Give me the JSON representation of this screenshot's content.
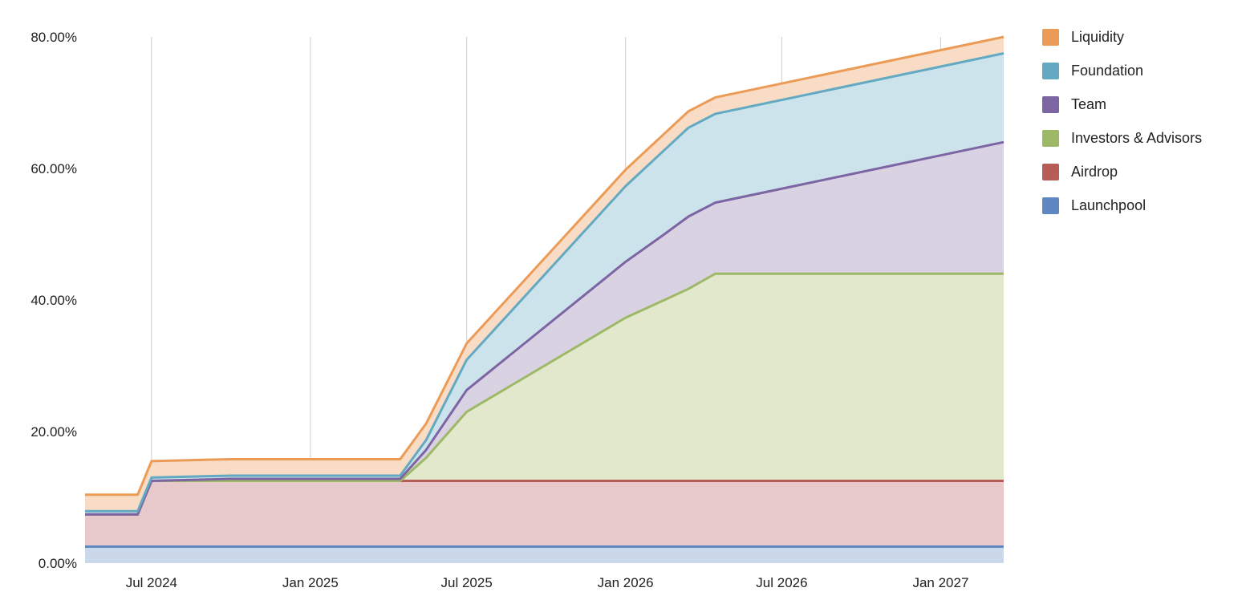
{
  "chart_data": {
    "type": "area",
    "stacked": true,
    "title": "",
    "xlabel": "",
    "ylabel": "",
    "ylim": [
      0,
      80
    ],
    "xlim": [
      "2024-04-15",
      "2027-03-15"
    ],
    "grid": "vertical",
    "legend_position": "right",
    "y_ticks": [
      "0.00%",
      "20.00%",
      "40.00%",
      "60.00%",
      "80.00%"
    ],
    "x_ticks": [
      {
        "date": "2024-07-01",
        "label": "Jul 2024"
      },
      {
        "date": "2025-01-01",
        "label": "Jan 2025"
      },
      {
        "date": "2025-07-01",
        "label": "Jul 2025"
      },
      {
        "date": "2026-01-01",
        "label": "Jan 2026"
      },
      {
        "date": "2026-07-01",
        "label": "Jul 2026"
      },
      {
        "date": "2027-01-01",
        "label": "Jan 2027"
      }
    ],
    "x": [
      "2024-04-15",
      "2024-06-15",
      "2024-07-01",
      "2024-10-01",
      "2025-04-15",
      "2025-05-15",
      "2025-07-01",
      "2026-01-01",
      "2026-02-15",
      "2026-03-15",
      "2026-04-15",
      "2027-03-15"
    ],
    "series": [
      {
        "name": "Launchpool",
        "color": "#5f87c1",
        "fill": "#cbd8ea",
        "values": [
          2.5,
          2.5,
          2.5,
          2.5,
          2.5,
          2.5,
          2.5,
          2.5,
          2.5,
          2.5,
          2.5,
          2.5
        ]
      },
      {
        "name": "Airdrop",
        "color": "#b85c57",
        "fill": "#e7c9cb",
        "values": [
          4.9,
          4.9,
          10.0,
          10.0,
          10.0,
          10.0,
          10.0,
          10.0,
          10.0,
          10.0,
          10.0,
          10.0
        ]
      },
      {
        "name": "Investors & Advisors",
        "color": "#9eb966",
        "fill": "#e1e8cb",
        "values": [
          0,
          0,
          0,
          0,
          0,
          3.5,
          10.5,
          24.8,
          27.5,
          29.2,
          31.5,
          31.5
        ]
      },
      {
        "name": "Team",
        "color": "#7d65a3",
        "fill": "#d9d2e3",
        "values": [
          0,
          0,
          0,
          0.3,
          0.3,
          1.2,
          3.3,
          8.5,
          10.0,
          11.0,
          10.8,
          20.0
        ]
      },
      {
        "name": "Foundation",
        "color": "#63a9c2",
        "fill": "#cde3ec",
        "values": [
          0.5,
          0.5,
          0.5,
          0.5,
          0.5,
          1.5,
          4.6,
          11.5,
          12.8,
          13.5,
          13.5,
          13.5
        ]
      },
      {
        "name": "Liquidity",
        "color": "#ec9b57",
        "fill": "#f8dcc6",
        "values": [
          2.5,
          2.5,
          2.5,
          2.5,
          2.5,
          2.5,
          2.5,
          2.5,
          2.5,
          2.5,
          2.5,
          2.5
        ]
      }
    ]
  }
}
